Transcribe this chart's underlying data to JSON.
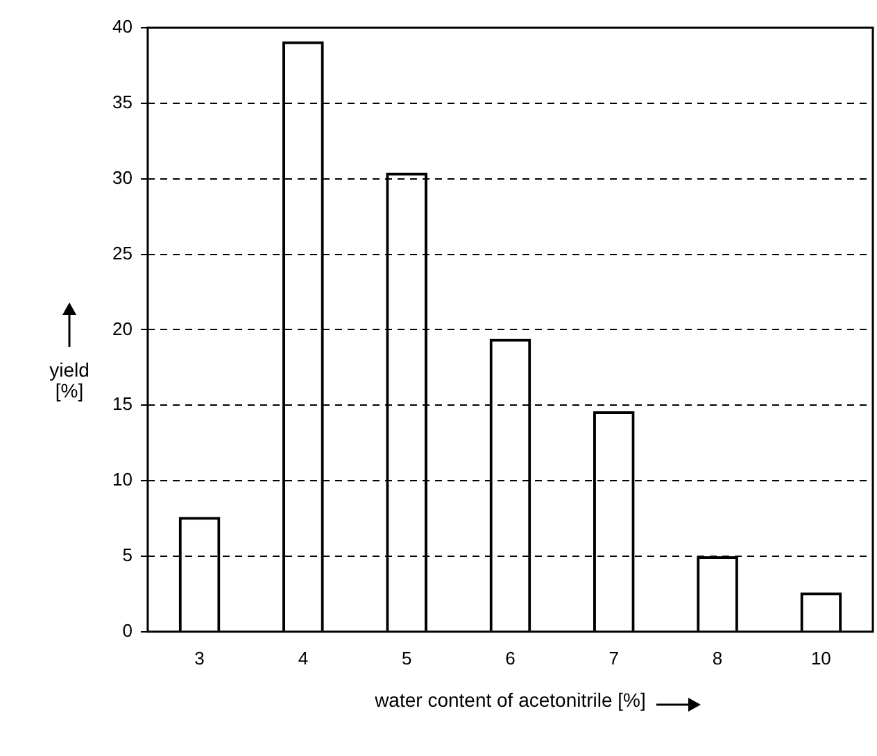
{
  "chart_data": {
    "type": "bar",
    "xlabel": "water content of acetonitrile [%]",
    "ylabel": "yield [%]",
    "categories": [
      "3",
      "4",
      "5",
      "6",
      "7",
      "8",
      "10"
    ],
    "values": [
      7.6,
      39.1,
      30.4,
      19.4,
      14.6,
      5.0,
      2.6
    ],
    "color": "#000000",
    "ylim": [
      0,
      40
    ],
    "yticks": [
      0,
      5,
      10,
      15,
      20,
      25,
      30,
      35,
      40
    ],
    "grid": "y",
    "legend": false
  }
}
